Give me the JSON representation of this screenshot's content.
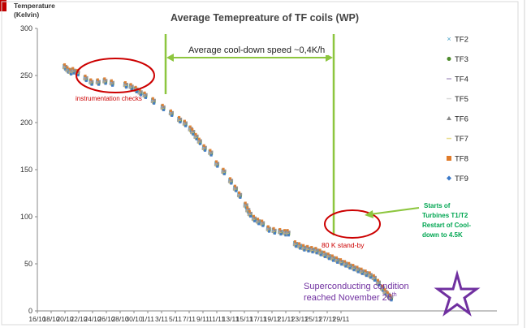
{
  "chart_data": {
    "type": "scatter",
    "title": "Average Temepreature of TF coils (WP)",
    "ylabel_line1": "Temperature",
    "ylabel_line2": "(Kelvin)",
    "xlabel": "",
    "ylim": [
      0,
      300
    ],
    "y_ticks": [
      0,
      50,
      100,
      150,
      200,
      250,
      300
    ],
    "x_ticks": [
      "16/10",
      "18/10",
      "20/10",
      "22/10",
      "24/10",
      "26/10",
      "28/10",
      "30/10",
      "1/11",
      "3/11",
      "5/11",
      "7/11",
      "9/11",
      "11/11",
      "13/11",
      "15/11",
      "17/11",
      "19/11",
      "21/11",
      "23/11",
      "25/11",
      "27/11",
      "29/11"
    ],
    "x_range_days": [
      0,
      44
    ],
    "x_start_label": "16/10",
    "grid": false,
    "legend_position": "right",
    "series": [
      {
        "name": "TF2",
        "color": "#4aa3c8",
        "marker": "x"
      },
      {
        "name": "TF3",
        "color": "#4e8b2c",
        "marker": "circle"
      },
      {
        "name": "TF4",
        "color": "#b0a0c8",
        "marker": "dash"
      },
      {
        "name": "TF5",
        "color": "#d9d9d9",
        "marker": "dash"
      },
      {
        "name": "TF6",
        "color": "#8a8a8a",
        "marker": "triangle"
      },
      {
        "name": "TF7",
        "color": "#e9dc8c",
        "marker": "dash"
      },
      {
        "name": "TF8",
        "color": "#e07b2a",
        "marker": "square"
      },
      {
        "name": "TF9",
        "color": "#3a78c8",
        "marker": "diamond"
      }
    ],
    "points": [
      [
        4,
        259
      ],
      [
        4.4,
        256
      ],
      [
        4.8,
        254
      ],
      [
        5.2,
        255
      ],
      [
        5.8,
        253
      ],
      [
        7,
        247
      ],
      [
        7.8,
        243
      ],
      [
        8.8,
        243
      ],
      [
        9.8,
        244
      ],
      [
        10.8,
        242
      ],
      [
        12.8,
        240
      ],
      [
        13.6,
        238
      ],
      [
        14.3,
        235
      ],
      [
        14.9,
        232
      ],
      [
        15.6,
        229
      ],
      [
        16.8,
        223
      ],
      [
        18.2,
        216
      ],
      [
        19.4,
        210
      ],
      [
        20.6,
        203
      ],
      [
        21.4,
        199
      ],
      [
        22.2,
        193
      ],
      [
        22.5,
        190
      ],
      [
        23,
        185
      ],
      [
        23.5,
        180
      ],
      [
        24.2,
        173
      ],
      [
        25.1,
        168
      ],
      [
        26,
        156
      ],
      [
        27,
        148
      ],
      [
        28,
        138
      ],
      [
        28.7,
        130
      ],
      [
        29.3,
        123
      ],
      [
        30.2,
        112
      ],
      [
        30.5,
        107
      ],
      [
        30.8,
        103
      ],
      [
        31.4,
        98
      ],
      [
        32,
        95
      ],
      [
        32.6,
        93
      ],
      [
        33.5,
        87
      ],
      [
        34.3,
        85
      ],
      [
        35.2,
        84
      ],
      [
        35.9,
        83
      ],
      [
        36.3,
        83
      ],
      [
        37.4,
        71
      ],
      [
        38,
        69
      ],
      [
        38.6,
        67
      ],
      [
        39.2,
        66
      ],
      [
        39.8,
        65
      ],
      [
        40.4,
        64
      ],
      [
        41,
        62
      ],
      [
        41.6,
        60
      ],
      [
        42.2,
        58
      ],
      [
        42.8,
        56
      ],
      [
        43.4,
        54
      ],
      [
        44,
        52
      ],
      [
        44.6,
        50
      ],
      [
        45.2,
        48
      ],
      [
        45.8,
        46
      ],
      [
        46.4,
        44
      ],
      [
        47,
        42
      ],
      [
        47.6,
        40
      ],
      [
        48.2,
        38
      ],
      [
        48.8,
        35
      ],
      [
        49.4,
        30
      ],
      [
        50,
        24
      ],
      [
        50.4,
        20
      ],
      [
        50.8,
        17
      ],
      [
        51.2,
        14
      ]
    ]
  },
  "annotations": {
    "speed_label": "Average cool-down speed ~0,4K/h",
    "instrumentation": "instrumentation   checks",
    "standby": "80 K stand-by",
    "turbines_line1": "Starts of",
    "turbines_line2": "Turbines  T1/T2",
    "turbines_line3": "Restart of Cool-",
    "turbines_line4": "down  to  4.5K",
    "supercond_line1": "Superconducting condition",
    "supercond_line2": "reached November 26",
    "supercond_sup": "th"
  },
  "colors": {
    "green_annotation": "#8dc63f",
    "red_ellipse": "#cc0000",
    "purple_star": "#7030a0",
    "green_text": "#00a651"
  }
}
